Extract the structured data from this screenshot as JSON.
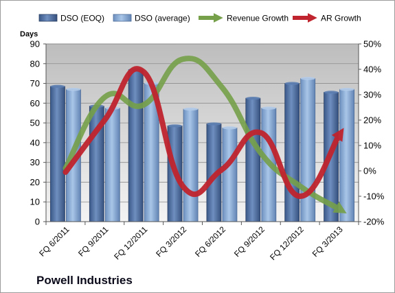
{
  "chart_data": {
    "type": "bar",
    "title": "Powell Industries",
    "ylabel": "Days",
    "categories": [
      "FQ 6/2011",
      "FQ 9/2011",
      "FQ 12/2011",
      "FQ 3/2012",
      "FQ 6/2012",
      "FQ 9/2012",
      "FQ 12/2012",
      "FQ 3/2013"
    ],
    "ylim": [
      0,
      90
    ],
    "yticks": [
      0,
      10,
      20,
      30,
      40,
      50,
      60,
      70,
      80,
      90
    ],
    "y2lim": [
      -20,
      50
    ],
    "y2ticks": [
      "-20%",
      "-10%",
      "0%",
      "10%",
      "20%",
      "30%",
      "40%",
      "50%"
    ],
    "y2tick_values": [
      -20,
      -10,
      0,
      10,
      20,
      30,
      40,
      50
    ],
    "grid": true,
    "legend_placement": "top",
    "bar_series": [
      {
        "name": "DSO (EOQ)",
        "values": [
          68.5,
          58.5,
          77,
          48.5,
          49.5,
          62.5,
          70,
          65.5
        ],
        "color": "#4f6fa0"
      },
      {
        "name": "DSO (average)",
        "values": [
          67,
          57.5,
          70,
          57,
          47.5,
          57.5,
          72.5,
          67
        ],
        "color": "#8fb0d8"
      }
    ],
    "line_series": [
      {
        "name": "Revenue Growth",
        "axis": "secondary",
        "values": [
          1,
          29,
          26,
          44,
          33,
          7,
          -6,
          -15
        ],
        "color": "#76a04a"
      },
      {
        "name": "AR Growth",
        "axis": "secondary",
        "values": [
          -0.5,
          20,
          39,
          -6,
          0.5,
          15,
          -10,
          14
        ],
        "color": "#c0242e"
      }
    ],
    "plot_background": "#c0c0c0"
  }
}
